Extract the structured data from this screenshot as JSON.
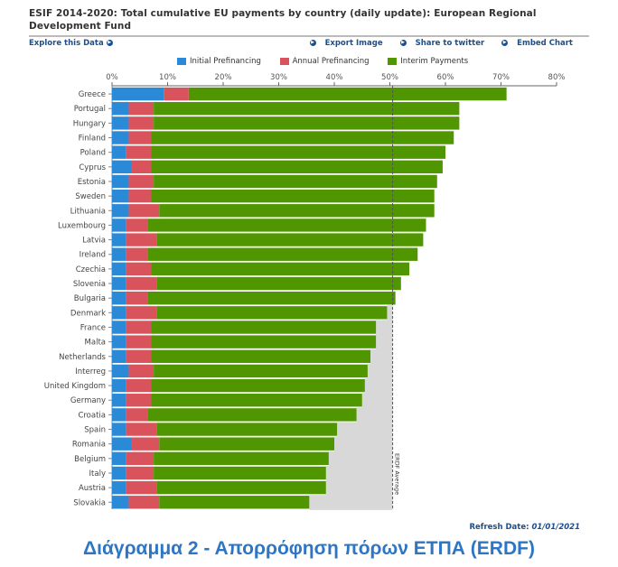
{
  "header": {
    "title": "ESIF 2014-2020: Total cumulative EU payments by country (daily update): European Regional Development Fund"
  },
  "toolbar": {
    "explore_label": "Explore this Data",
    "export_label": "Export Image",
    "share_label": "Share to twitter",
    "embed_label": "Embed Chart"
  },
  "legend": {
    "initial": "Initial Prefinancing",
    "annual": "Annual Prefinancing",
    "interim": "Interim Payments"
  },
  "colors": {
    "initial": "#2a8ad8",
    "annual": "#d9535c",
    "interim": "#4f9600",
    "average_fill": "#d8d8d8",
    "accent": "#1a4f8f"
  },
  "chart_data": {
    "type": "bar",
    "orientation": "horizontal",
    "stacked": true,
    "xlim": [
      0,
      80
    ],
    "x_ticks": [
      "0%",
      "10%",
      "20%",
      "30%",
      "40%",
      "50%",
      "60%",
      "70%",
      "80%"
    ],
    "average_label": "ERDF Average",
    "average_value": 50.5,
    "categories": [
      "Greece",
      "Portugal",
      "Hungary",
      "Finland",
      "Poland",
      "Cyprus",
      "Estonia",
      "Sweden",
      "Lithuania",
      "Luxembourg",
      "Latvia",
      "Ireland",
      "Czechia",
      "Slovenia",
      "Bulgaria",
      "Denmark",
      "France",
      "Malta",
      "Netherlands",
      "Interreg",
      "United Kingdom",
      "Germany",
      "Croatia",
      "Spain",
      "Romania",
      "Belgium",
      "Italy",
      "Austria",
      "Slovakia"
    ],
    "series": [
      {
        "name": "Initial Prefinancing",
        "values": [
          9.3,
          3.0,
          3.0,
          3.0,
          2.5,
          3.5,
          3.0,
          3.0,
          3.0,
          2.5,
          2.5,
          2.5,
          2.5,
          2.5,
          2.5,
          2.5,
          2.5,
          2.5,
          2.5,
          3.0,
          2.5,
          2.5,
          2.5,
          2.5,
          3.5,
          2.5,
          2.5,
          2.5,
          3.0
        ]
      },
      {
        "name": "Annual Prefinancing",
        "values": [
          4.5,
          4.5,
          4.5,
          4.0,
          4.5,
          3.5,
          4.5,
          4.0,
          5.5,
          4.0,
          5.5,
          4.0,
          4.5,
          5.5,
          4.0,
          5.5,
          4.5,
          4.5,
          4.5,
          4.5,
          4.5,
          4.5,
          4.0,
          5.5,
          5.0,
          5.0,
          5.0,
          5.5,
          5.5
        ]
      },
      {
        "name": "Interim Payments",
        "values": [
          57.2,
          55.0,
          55.0,
          54.5,
          53.0,
          52.5,
          51.0,
          51.0,
          49.5,
          50.0,
          48.0,
          48.5,
          46.5,
          44.0,
          44.5,
          41.5,
          40.5,
          40.5,
          39.5,
          38.5,
          38.5,
          38.0,
          37.5,
          32.5,
          31.5,
          31.5,
          31.0,
          30.5,
          27.0
        ]
      }
    ]
  },
  "footer": {
    "refresh_label": "Refresh Date:",
    "refresh_value": "01/01/2021",
    "caption": "Διάγραμμα 2 - Απορρόφηση πόρων ΕΤΠΑ (ERDF)"
  }
}
